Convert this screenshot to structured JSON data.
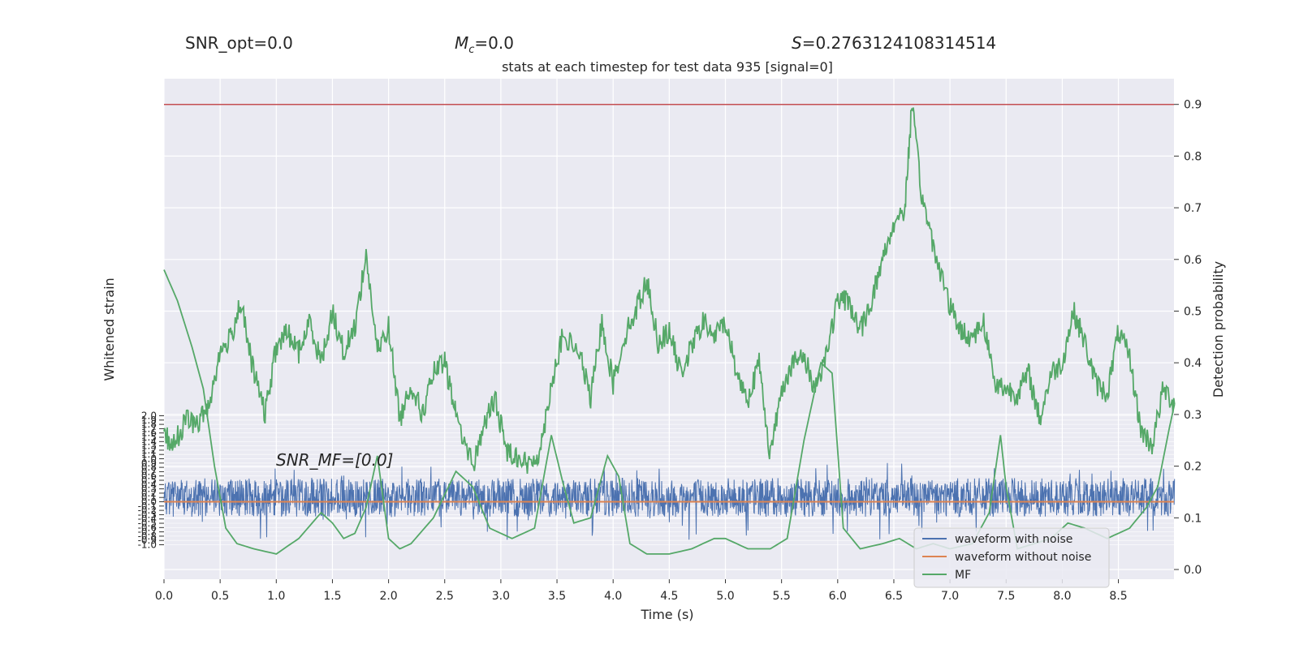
{
  "header": {
    "snr_opt": "SNR_opt=0.0",
    "mc_symbol": "M",
    "mc_sub": "c",
    "mc_value": "=0.0",
    "s_symbol": "S",
    "s_value": "=0.2763124108314514"
  },
  "chart_data": {
    "type": "line",
    "title": "stats at each timestep for test data 935 [signal=0]",
    "xlabel": "Time (s)",
    "ylabel_left": "Whitened strain",
    "ylabel_right": "Detection probability",
    "annotation": "SNR_MF=[0.0]",
    "xlim": [
      0,
      9
    ],
    "x_ticks": [
      "0.0",
      "0.5",
      "1.0",
      "1.5",
      "2.0",
      "2.5",
      "3.0",
      "3.5",
      "4.0",
      "4.5",
      "5.0",
      "5.5",
      "6.0",
      "6.5",
      "7.0",
      "7.5",
      "8.0",
      "8.5"
    ],
    "y_right_lim": [
      -0.02,
      0.93
    ],
    "y_right_ticks": [
      "0.0",
      "0.1",
      "0.2",
      "0.3",
      "0.4",
      "0.5",
      "0.6",
      "0.7",
      "0.8",
      "0.9"
    ],
    "y_left_ticks": [
      "-1.0",
      "-0.9",
      "-0.8",
      "-0.7",
      "-0.6",
      "-0.5",
      "-0.4",
      "-0.3",
      "-0.2",
      "-0.1",
      "0.0",
      "0.1",
      "0.2",
      "0.3",
      "0.4",
      "0.5",
      "0.6",
      "0.7",
      "0.8",
      "0.9",
      "1.0",
      "1.1",
      "1.2",
      "1.3",
      "1.4",
      "1.5",
      "1.6",
      "1.7",
      "1.8",
      "1.9",
      "2.0"
    ],
    "threshold": {
      "value": 0.9,
      "color": "#c44e52"
    },
    "grid": true,
    "legend_position": "lower-right",
    "legend": [
      {
        "name": "waveform with noise",
        "color": "#4c72b0"
      },
      {
        "name": "waveform without noise",
        "color": "#dd8452"
      },
      {
        "name": "MF",
        "color": "#55a868"
      }
    ],
    "series": [
      {
        "name": "waveform with noise",
        "color": "#4c72b0",
        "amplitude_band": [
          -0.35,
          0.55
        ],
        "spike_range": [
          -0.9,
          0.9
        ]
      },
      {
        "name": "waveform without noise",
        "color": "#dd8452",
        "value": 0.0
      },
      {
        "name": "MF",
        "color": "#55a868",
        "x": [
          0.0,
          0.12,
          0.25,
          0.35,
          0.45,
          0.55,
          0.65,
          0.8,
          1.0,
          1.2,
          1.4,
          1.5,
          1.6,
          1.7,
          1.8,
          1.9,
          2.0,
          2.1,
          2.2,
          2.4,
          2.6,
          2.75,
          2.9,
          3.1,
          3.3,
          3.45,
          3.55,
          3.65,
          3.8,
          3.95,
          4.05,
          4.15,
          4.3,
          4.5,
          4.7,
          4.9,
          5.0,
          5.2,
          5.4,
          5.55,
          5.7,
          5.85,
          5.95,
          6.05,
          6.2,
          6.4,
          6.55,
          6.7,
          6.85,
          7.0,
          7.2,
          7.35,
          7.45,
          7.5,
          7.6,
          7.75,
          7.9,
          8.05,
          8.2,
          8.4,
          8.6,
          8.75,
          8.85,
          8.95,
          9.0
        ],
        "y": [
          0.58,
          0.52,
          0.43,
          0.35,
          0.2,
          0.08,
          0.05,
          0.04,
          0.03,
          0.06,
          0.11,
          0.09,
          0.06,
          0.07,
          0.12,
          0.22,
          0.06,
          0.04,
          0.05,
          0.1,
          0.19,
          0.16,
          0.08,
          0.06,
          0.08,
          0.26,
          0.17,
          0.09,
          0.1,
          0.22,
          0.18,
          0.05,
          0.03,
          0.03,
          0.04,
          0.06,
          0.06,
          0.04,
          0.04,
          0.06,
          0.25,
          0.4,
          0.38,
          0.08,
          0.04,
          0.05,
          0.06,
          0.04,
          0.05,
          0.04,
          0.05,
          0.11,
          0.26,
          0.16,
          0.04,
          0.05,
          0.06,
          0.09,
          0.08,
          0.06,
          0.08,
          0.12,
          0.16,
          0.27,
          0.32
        ]
      },
      {
        "name": "detection probability",
        "color": "#55a868",
        "x": [
          0.0,
          0.08,
          0.2,
          0.3,
          0.4,
          0.5,
          0.6,
          0.68,
          0.78,
          0.9,
          1.0,
          1.1,
          1.2,
          1.3,
          1.4,
          1.5,
          1.6,
          1.7,
          1.8,
          1.9,
          2.0,
          2.1,
          2.2,
          2.3,
          2.4,
          2.5,
          2.6,
          2.75,
          2.85,
          2.95,
          3.05,
          3.15,
          3.25,
          3.35,
          3.45,
          3.55,
          3.7,
          3.8,
          3.9,
          4.0,
          4.1,
          4.2,
          4.3,
          4.4,
          4.5,
          4.6,
          4.7,
          4.8,
          4.9,
          5.0,
          5.1,
          5.2,
          5.3,
          5.4,
          5.5,
          5.6,
          5.7,
          5.8,
          5.9,
          6.0,
          6.1,
          6.2,
          6.3,
          6.4,
          6.5,
          6.6,
          6.66,
          6.75,
          6.85,
          7.0,
          7.1,
          7.2,
          7.3,
          7.4,
          7.5,
          7.6,
          7.7,
          7.8,
          7.9,
          8.0,
          8.1,
          8.2,
          8.3,
          8.4,
          8.5,
          8.6,
          8.7,
          8.8,
          8.9,
          9.0
        ],
        "y": [
          0.26,
          0.24,
          0.29,
          0.28,
          0.32,
          0.42,
          0.45,
          0.52,
          0.4,
          0.3,
          0.43,
          0.46,
          0.42,
          0.48,
          0.4,
          0.5,
          0.42,
          0.47,
          0.61,
          0.42,
          0.47,
          0.29,
          0.36,
          0.3,
          0.38,
          0.4,
          0.3,
          0.2,
          0.28,
          0.33,
          0.23,
          0.22,
          0.2,
          0.23,
          0.36,
          0.45,
          0.42,
          0.33,
          0.48,
          0.36,
          0.45,
          0.5,
          0.56,
          0.44,
          0.46,
          0.38,
          0.43,
          0.48,
          0.45,
          0.48,
          0.38,
          0.33,
          0.4,
          0.22,
          0.35,
          0.4,
          0.41,
          0.35,
          0.42,
          0.52,
          0.52,
          0.46,
          0.52,
          0.6,
          0.67,
          0.7,
          0.9,
          0.72,
          0.63,
          0.51,
          0.46,
          0.45,
          0.48,
          0.36,
          0.35,
          0.34,
          0.38,
          0.29,
          0.38,
          0.4,
          0.5,
          0.44,
          0.36,
          0.34,
          0.46,
          0.41,
          0.27,
          0.24,
          0.35,
          0.32
        ]
      }
    ]
  }
}
